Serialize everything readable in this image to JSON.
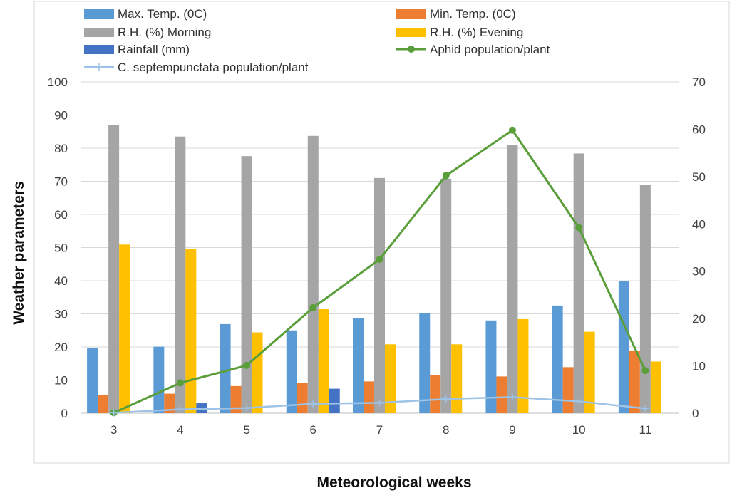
{
  "chart_data": {
    "type": "bar",
    "xlabel": "Meteorological weeks",
    "ylabel": "Weather parameters",
    "y2label": "",
    "categories": [
      "3",
      "4",
      "5",
      "6",
      "7",
      "8",
      "9",
      "10",
      "11"
    ],
    "ylim": [
      0,
      100
    ],
    "y2lim": [
      0,
      70
    ],
    "yticks": [
      "0",
      "10",
      "20",
      "30",
      "40",
      "50",
      "60",
      "70",
      "80",
      "90",
      "100"
    ],
    "y2ticks": [
      "0",
      "10",
      "20",
      "30",
      "40",
      "50",
      "60",
      "70"
    ],
    "grid": true,
    "legend_position": "top",
    "bar_series": [
      {
        "name": "Max. Temp. (0C)",
        "color": "#5b9bd5",
        "values": [
          19.7,
          20.1,
          26.9,
          25.0,
          28.7,
          30.3,
          28.0,
          32.5,
          40.0
        ]
      },
      {
        "name": "Min. Temp. (0C)",
        "color": "#ed7d31",
        "values": [
          5.6,
          5.9,
          8.2,
          9.1,
          9.6,
          11.6,
          11.1,
          13.9,
          18.9
        ]
      },
      {
        "name": "R.H. (%) Morning",
        "color": "#a5a5a5",
        "values": [
          86.9,
          83.5,
          77.6,
          83.7,
          71.0,
          70.8,
          81.0,
          78.4,
          69.0
        ]
      },
      {
        "name": "R.H. (%) Evening",
        "color": "#ffc000",
        "values": [
          50.9,
          49.5,
          24.4,
          31.4,
          20.8,
          20.8,
          28.4,
          24.6,
          15.6
        ]
      },
      {
        "name": "Rainfall (mm)",
        "color": "#4472c4",
        "values": [
          0,
          3.0,
          0,
          7.4,
          0,
          0,
          0,
          0,
          0
        ]
      }
    ],
    "line_series": [
      {
        "name": "Aphid population/plant",
        "color": "#5a9e3a",
        "axis": "secondary",
        "marker": "circle",
        "values": [
          0.1,
          6.4,
          10.1,
          22.3,
          32.5,
          50.2,
          59.8,
          39.2,
          9.0
        ]
      },
      {
        "name": "C. septempunctata population/plant",
        "color": "#9dc3e6",
        "axis": "secondary",
        "marker": "plus",
        "values": [
          0.1,
          0.8,
          1.1,
          2.0,
          2.2,
          3.0,
          3.4,
          2.5,
          1.0
        ]
      }
    ]
  }
}
